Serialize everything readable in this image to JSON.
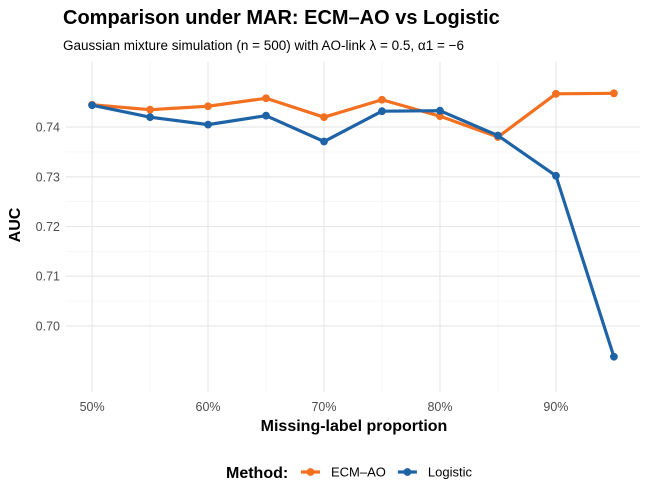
{
  "chart_data": {
    "type": "line",
    "title": "Comparison under MAR: ECM–AO vs Logistic",
    "subtitle": "Gaussian mixture simulation (n = 500) with AO-link λ = 0.5, α1 = −6",
    "xlabel": "Missing-label proportion",
    "ylabel": "AUC",
    "x": [
      0.5,
      0.55,
      0.6,
      0.65,
      0.7,
      0.75,
      0.8,
      0.85,
      0.9,
      0.95
    ],
    "xlim": [
      0.4775,
      0.9725
    ],
    "ylim": [
      0.6867,
      0.7531
    ],
    "x_ticks": [
      0.5,
      0.6,
      0.7,
      0.8,
      0.9
    ],
    "x_tick_labels": [
      "50%",
      "60%",
      "70%",
      "80%",
      "90%"
    ],
    "y_ticks": [
      0.7,
      0.71,
      0.72,
      0.73,
      0.74
    ],
    "y_tick_labels": [
      "0.70",
      "0.71",
      "0.72",
      "0.73",
      "0.74"
    ],
    "grid": true,
    "legend": {
      "title": "Method:",
      "position": "bottom"
    },
    "series": [
      {
        "name": "ECM–AO",
        "color": "#F37021",
        "values": [
          0.7445,
          0.7435,
          0.7442,
          0.7458,
          0.742,
          0.7455,
          0.7422,
          0.738,
          0.7467,
          0.7468
        ]
      },
      {
        "name": "Logistic",
        "color": "#1F63A7",
        "values": [
          0.7444,
          0.742,
          0.7405,
          0.7423,
          0.7371,
          0.7432,
          0.7433,
          0.7383,
          0.7302,
          0.6938
        ]
      }
    ]
  }
}
